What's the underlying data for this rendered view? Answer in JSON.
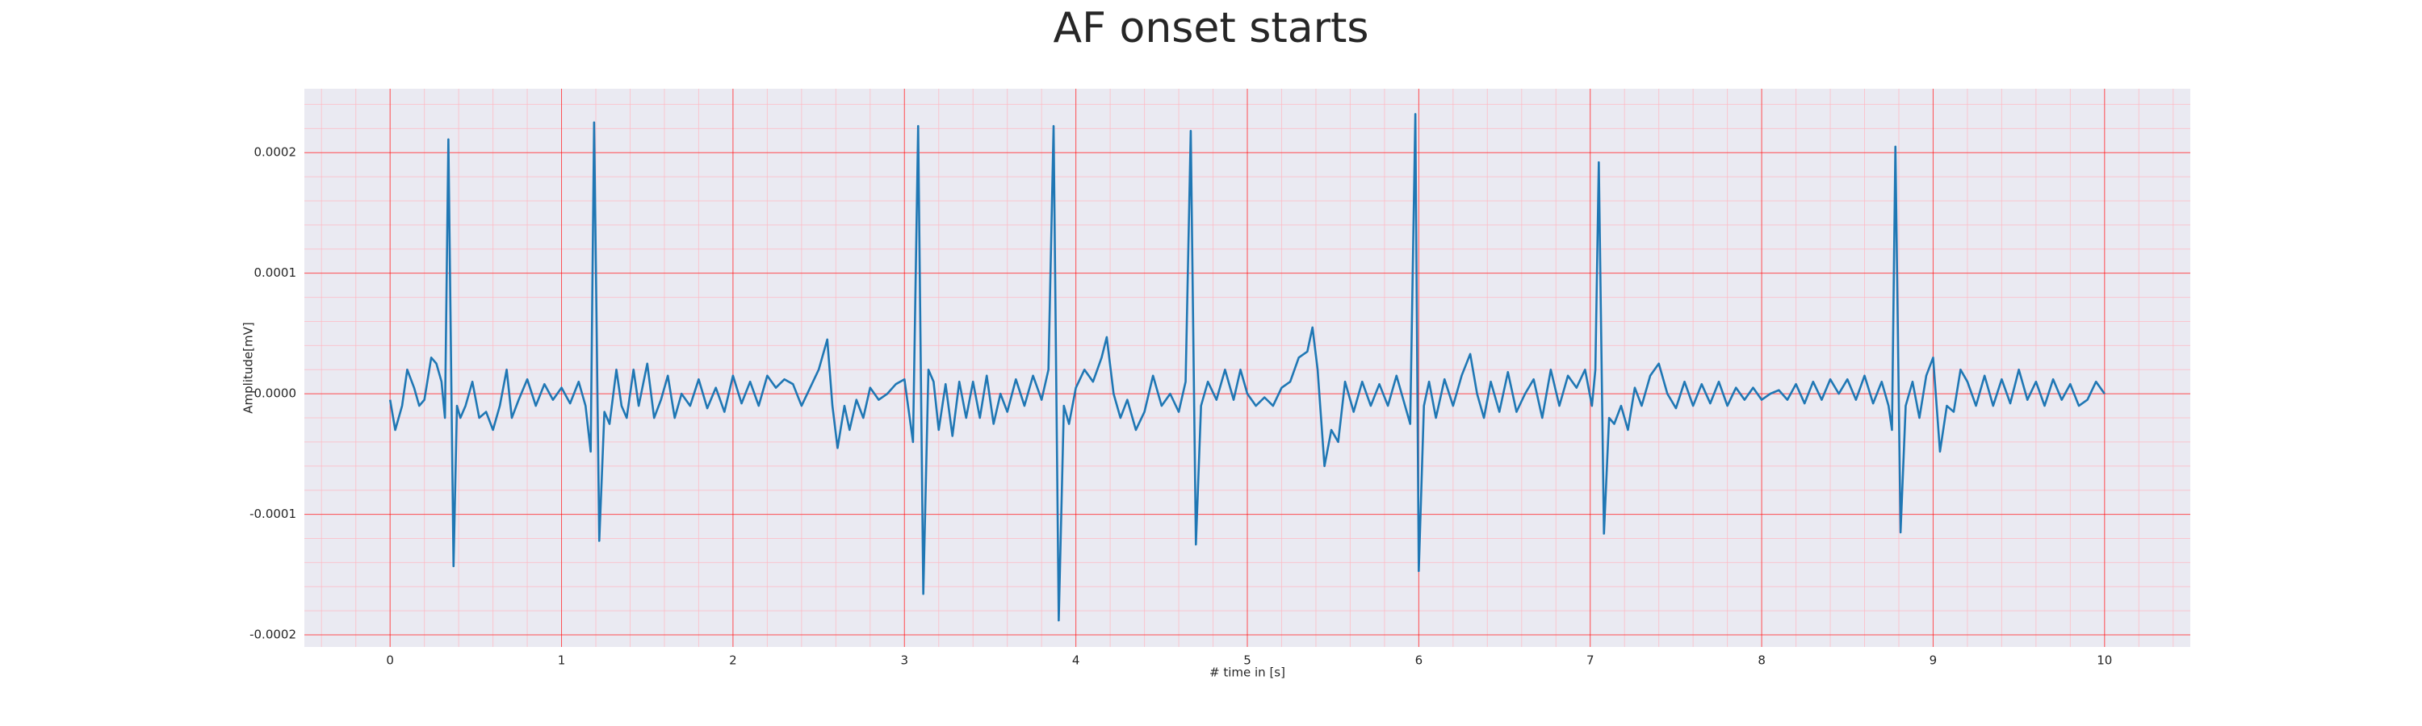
{
  "chart_data": {
    "type": "line",
    "title": "AF onset starts",
    "xlabel": "# time in [s]",
    "ylabel": "Amplitude[mV]",
    "color": "#1f77b4",
    "grid": true,
    "minor_grid": true,
    "xlim": [
      -0.5,
      10.5
    ],
    "ylim": [
      -0.00021,
      0.000253
    ],
    "xticks": [
      0,
      1,
      2,
      3,
      4,
      5,
      6,
      7,
      8,
      9,
      10
    ],
    "yticks": [
      -0.0002,
      -0.0001,
      {
        "value": 0,
        "label": "0.0000"
      },
      0.0001,
      0.0002
    ],
    "x": [
      0.0,
      0.03,
      0.07,
      0.1,
      0.14,
      0.17,
      0.2,
      0.24,
      0.27,
      0.3,
      0.32,
      0.34,
      0.37,
      0.39,
      0.41,
      0.44,
      0.48,
      0.52,
      0.56,
      0.6,
      0.64,
      0.68,
      0.71,
      0.75,
      0.8,
      0.85,
      0.9,
      0.95,
      1.0,
      1.05,
      1.1,
      1.14,
      1.17,
      1.19,
      1.22,
      1.25,
      1.28,
      1.32,
      1.35,
      1.38,
      1.42,
      1.45,
      1.5,
      1.54,
      1.58,
      1.62,
      1.66,
      1.7,
      1.75,
      1.8,
      1.85,
      1.9,
      1.95,
      2.0,
      2.05,
      2.1,
      2.15,
      2.2,
      2.25,
      2.3,
      2.35,
      2.4,
      2.45,
      2.5,
      2.55,
      2.58,
      2.61,
      2.65,
      2.68,
      2.72,
      2.76,
      2.8,
      2.85,
      2.9,
      2.95,
      3.0,
      3.05,
      3.08,
      3.11,
      3.14,
      3.17,
      3.2,
      3.24,
      3.28,
      3.32,
      3.36,
      3.4,
      3.44,
      3.48,
      3.52,
      3.56,
      3.6,
      3.65,
      3.7,
      3.75,
      3.8,
      3.84,
      3.87,
      3.9,
      3.93,
      3.96,
      4.0,
      4.05,
      4.1,
      4.15,
      4.18,
      4.22,
      4.26,
      4.3,
      4.35,
      4.4,
      4.45,
      4.5,
      4.55,
      4.6,
      4.64,
      4.67,
      4.7,
      4.73,
      4.77,
      4.82,
      4.87,
      4.92,
      4.96,
      5.0,
      5.05,
      5.1,
      5.15,
      5.2,
      5.25,
      5.3,
      5.35,
      5.38,
      5.41,
      5.45,
      5.49,
      5.53,
      5.57,
      5.62,
      5.67,
      5.72,
      5.77,
      5.82,
      5.87,
      5.92,
      5.95,
      5.98,
      6.0,
      6.03,
      6.06,
      6.1,
      6.15,
      6.2,
      6.25,
      6.3,
      6.34,
      6.38,
      6.42,
      6.47,
      6.52,
      6.57,
      6.62,
      6.67,
      6.72,
      6.77,
      6.82,
      6.87,
      6.92,
      6.97,
      7.01,
      7.03,
      7.05,
      7.08,
      7.11,
      7.14,
      7.18,
      7.22,
      7.26,
      7.3,
      7.35,
      7.4,
      7.45,
      7.5,
      7.55,
      7.6,
      7.65,
      7.7,
      7.75,
      7.8,
      7.85,
      7.9,
      7.95,
      8.0,
      8.05,
      8.1,
      8.15,
      8.2,
      8.25,
      8.3,
      8.35,
      8.4,
      8.45,
      8.5,
      8.55,
      8.6,
      8.65,
      8.7,
      8.74,
      8.76,
      8.78,
      8.81,
      8.84,
      8.88,
      8.92,
      8.96,
      9.0,
      9.04,
      9.08,
      9.12,
      9.16,
      9.2,
      9.25,
      9.3,
      9.35,
      9.4,
      9.45,
      9.5,
      9.55,
      9.6,
      9.65,
      9.7,
      9.75,
      9.8,
      9.85,
      9.9,
      9.95,
      10.0
    ],
    "values": [
      -5e-06,
      -3e-05,
      -1e-05,
      2e-05,
      5e-06,
      -1e-05,
      -5e-06,
      3e-05,
      2.5e-05,
      1e-05,
      -2e-05,
      0.000211,
      -0.000143,
      -1e-05,
      -2e-05,
      -1e-05,
      1e-05,
      -2e-05,
      -1.5e-05,
      -3e-05,
      -1e-05,
      2e-05,
      -2e-05,
      -5e-06,
      1.2e-05,
      -1e-05,
      8e-06,
      -5e-06,
      5e-06,
      -8e-06,
      1e-05,
      -1e-05,
      -4.8e-05,
      0.000225,
      -0.000122,
      -1.5e-05,
      -2.5e-05,
      2e-05,
      -1e-05,
      -2e-05,
      2e-05,
      -1e-05,
      2.5e-05,
      -2e-05,
      -5e-06,
      1.5e-05,
      -2e-05,
      0.0,
      -1e-05,
      1.2e-05,
      -1.2e-05,
      5e-06,
      -1.5e-05,
      1.5e-05,
      -8e-06,
      1e-05,
      -1e-05,
      1.5e-05,
      5e-06,
      1.2e-05,
      8e-06,
      -1e-05,
      5e-06,
      2e-05,
      4.5e-05,
      -1e-05,
      -4.5e-05,
      -1e-05,
      -3e-05,
      -5e-06,
      -2e-05,
      5e-06,
      -5e-06,
      0.0,
      8e-06,
      1.2e-05,
      -4e-05,
      0.000222,
      -0.000166,
      2e-05,
      1e-05,
      -3e-05,
      8e-06,
      -3.5e-05,
      1e-05,
      -2e-05,
      1e-05,
      -2e-05,
      1.5e-05,
      -2.5e-05,
      0.0,
      -1.5e-05,
      1.2e-05,
      -1e-05,
      1.5e-05,
      -5e-06,
      2e-05,
      0.000222,
      -0.000188,
      -1e-05,
      -2.5e-05,
      5e-06,
      2e-05,
      1e-05,
      3e-05,
      4.7e-05,
      0.0,
      -2e-05,
      -5e-06,
      -3e-05,
      -1.5e-05,
      1.5e-05,
      -1e-05,
      0.0,
      -1.5e-05,
      1e-05,
      0.000218,
      -0.000125,
      -1e-05,
      1e-05,
      -5e-06,
      2e-05,
      -5e-06,
      2e-05,
      0.0,
      -1e-05,
      -3e-06,
      -1e-05,
      5e-06,
      1e-05,
      3e-05,
      3.5e-05,
      5.5e-05,
      2e-05,
      -6e-05,
      -3e-05,
      -4e-05,
      1e-05,
      -1.5e-05,
      1e-05,
      -1e-05,
      8e-06,
      -1e-05,
      1.5e-05,
      -1e-05,
      -2.5e-05,
      0.000232,
      -0.000147,
      -1e-05,
      1e-05,
      -2e-05,
      1.2e-05,
      -1e-05,
      1.5e-05,
      3.3e-05,
      0.0,
      -2e-05,
      1e-05,
      -1.5e-05,
      1.8e-05,
      -1.5e-05,
      0.0,
      1.2e-05,
      -2e-05,
      2e-05,
      -1e-05,
      1.5e-05,
      5e-06,
      2e-05,
      -1e-05,
      2e-05,
      0.000192,
      -0.000116,
      -2e-05,
      -2.5e-05,
      -1e-05,
      -3e-05,
      5e-06,
      -1e-05,
      1.5e-05,
      2.5e-05,
      0.0,
      -1.2e-05,
      1e-05,
      -1e-05,
      8e-06,
      -8e-06,
      1e-05,
      -1e-05,
      5e-06,
      -5e-06,
      5e-06,
      -5e-06,
      0.0,
      3e-06,
      -5e-06,
      8e-06,
      -8e-06,
      1e-05,
      -5e-06,
      1.2e-05,
      0.0,
      1.2e-05,
      -5e-06,
      1.5e-05,
      -8e-06,
      1e-05,
      -1e-05,
      -3e-05,
      0.000205,
      -0.000115,
      -1e-05,
      1e-05,
      -2e-05,
      1.5e-05,
      3e-05,
      -4.8e-05,
      -1e-05,
      -1.5e-05,
      2e-05,
      1e-05,
      -1e-05,
      1.5e-05,
      -1e-05,
      1.2e-05,
      -8e-06,
      2e-05,
      -5e-06,
      1e-05,
      -1e-05,
      1.2e-05,
      -5e-06,
      8e-06,
      -1e-05,
      -5e-06,
      1e-05,
      0.0
    ]
  }
}
